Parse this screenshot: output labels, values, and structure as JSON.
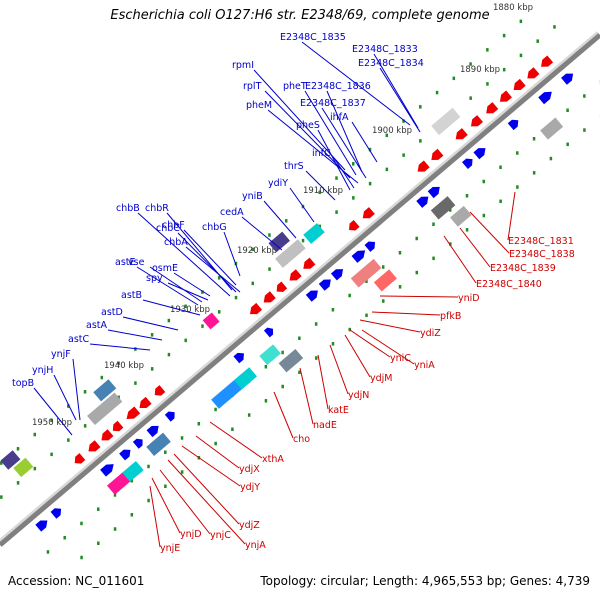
{
  "title": "Escherichia coli O127:H6 str. E2348/69, complete genome",
  "footer": {
    "accession": "Accession: NC_011601",
    "summary": "Topology: circular; Length: 4,965,553 bp; Genes: 4,739"
  },
  "colors": {
    "backbone": "#808080",
    "forward_label": "#0000cc",
    "reverse_label": "#cc0000",
    "forward_feature": "#0000ee",
    "reverse_feature": "#ee0000",
    "tick": "#228b22"
  },
  "scale": {
    "unit": "kbp",
    "ticks": [
      {
        "label": "1880 kbp"
      },
      {
        "label": "1890 kbp"
      },
      {
        "label": "1900 kbp"
      },
      {
        "label": "1910 kbp"
      },
      {
        "label": "1920 kbp"
      },
      {
        "label": "1930 kbp"
      },
      {
        "label": "1940 kbp"
      },
      {
        "label": "1950 kbp"
      }
    ]
  },
  "forward_genes": [
    "E2348C_1835",
    "E2348C_1833",
    "E2348C_1834",
    "rpmI",
    "rplT",
    "pheT",
    "E2348C_1836",
    "pheM",
    "E2348C_1837",
    "ihfA",
    "pheS",
    "infC",
    "thrS",
    "ydiY",
    "yniB",
    "cedA",
    "chbB",
    "chbR",
    "chbF",
    "chbC",
    "chbG",
    "chbA",
    "astE",
    "vse",
    "osmE",
    "spy",
    "astB",
    "astD",
    "astA",
    "astC",
    "ynjF",
    "ynjH",
    "topB"
  ],
  "reverse_genes": [
    "E2348C_1831",
    "E2348C_1838",
    "E2348C_1839",
    "E2348C_1840",
    "yniD",
    "pfkB",
    "ydiZ",
    "yniC",
    "yniA",
    "ydjM",
    "ydjN",
    "katE",
    "nadE",
    "cho",
    "xthA",
    "ydjX",
    "ydjY",
    "ydjZ",
    "ynjA",
    "ynjC",
    "ynjD",
    "ynjE"
  ]
}
